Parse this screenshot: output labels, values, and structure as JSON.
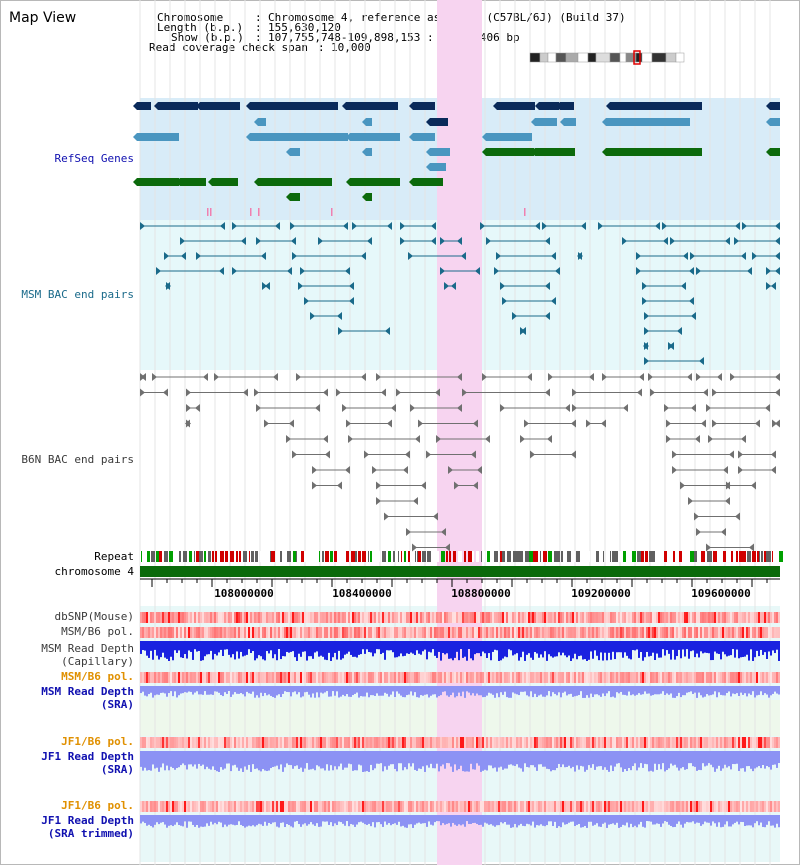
{
  "title": "Map View",
  "info": {
    "chromosome_key": "Chromosome",
    "chromosome_value": "Chromosome 4, reference assembly (C57BL/6J) (Build 37)",
    "length_key": "Length (b.p.)",
    "length_value": "155,630,120",
    "show_key": "Show (b.p.)",
    "show_value": "107,755,748-109,898,153 : 2,142,406 bp",
    "coverage_key": "Read coverage check span",
    "coverage_value": "10,000"
  },
  "tracks": {
    "refseq": "RefSeq Genes",
    "msm_bac": "MSM BAC end pairs",
    "b6n_bac": "B6N BAC end pairs",
    "repeat": "Repeat",
    "chromosome": "chromosome 4",
    "dbsnp": "dbSNP(Mouse)",
    "msm_b6_pol": "MSM/B6 pol.",
    "msm_depth_cap_1": "MSM Read Depth",
    "msm_depth_cap_2": "(Capillary)",
    "msm_b6_pol_2": "MSM/B6 pol.",
    "msm_depth_sra_1": "MSM Read Depth",
    "msm_depth_sra_2": "(SRA)",
    "jf1_b6_pol": "JF1/B6 pol.",
    "jf1_depth_sra_1": "JF1 Read Depth",
    "jf1_depth_sra_2": "(SRA)",
    "jf1_b6_pol_2": "JF1/B6 pol.",
    "jf1_depth_trim_1": "JF1 Read Depth",
    "jf1_depth_trim_2": "(SRA trimmed)"
  },
  "axis": {
    "ticks": [
      "108000000",
      "108400000",
      "108800000",
      "109200000",
      "109600000"
    ]
  },
  "colors": {
    "highlight": "#f7d4f0",
    "refseq_bg": "#d8ecf8",
    "msm_bg": "#e6f8fa",
    "dark_gene": "#0a2a5a",
    "light_gene": "#4a96c0",
    "green_gene": "#0c6a0c",
    "msm_pair": "#1a6a8a",
    "b6n_pair": "#707070",
    "chromosome_bar": "#0a6a0a",
    "depth_cap": "#1a22e0",
    "depth_sra": "#8c92f4",
    "label_blue": "#1010b0",
    "label_orange": "#e09000",
    "label_dark": "#3a3a3a"
  }
}
